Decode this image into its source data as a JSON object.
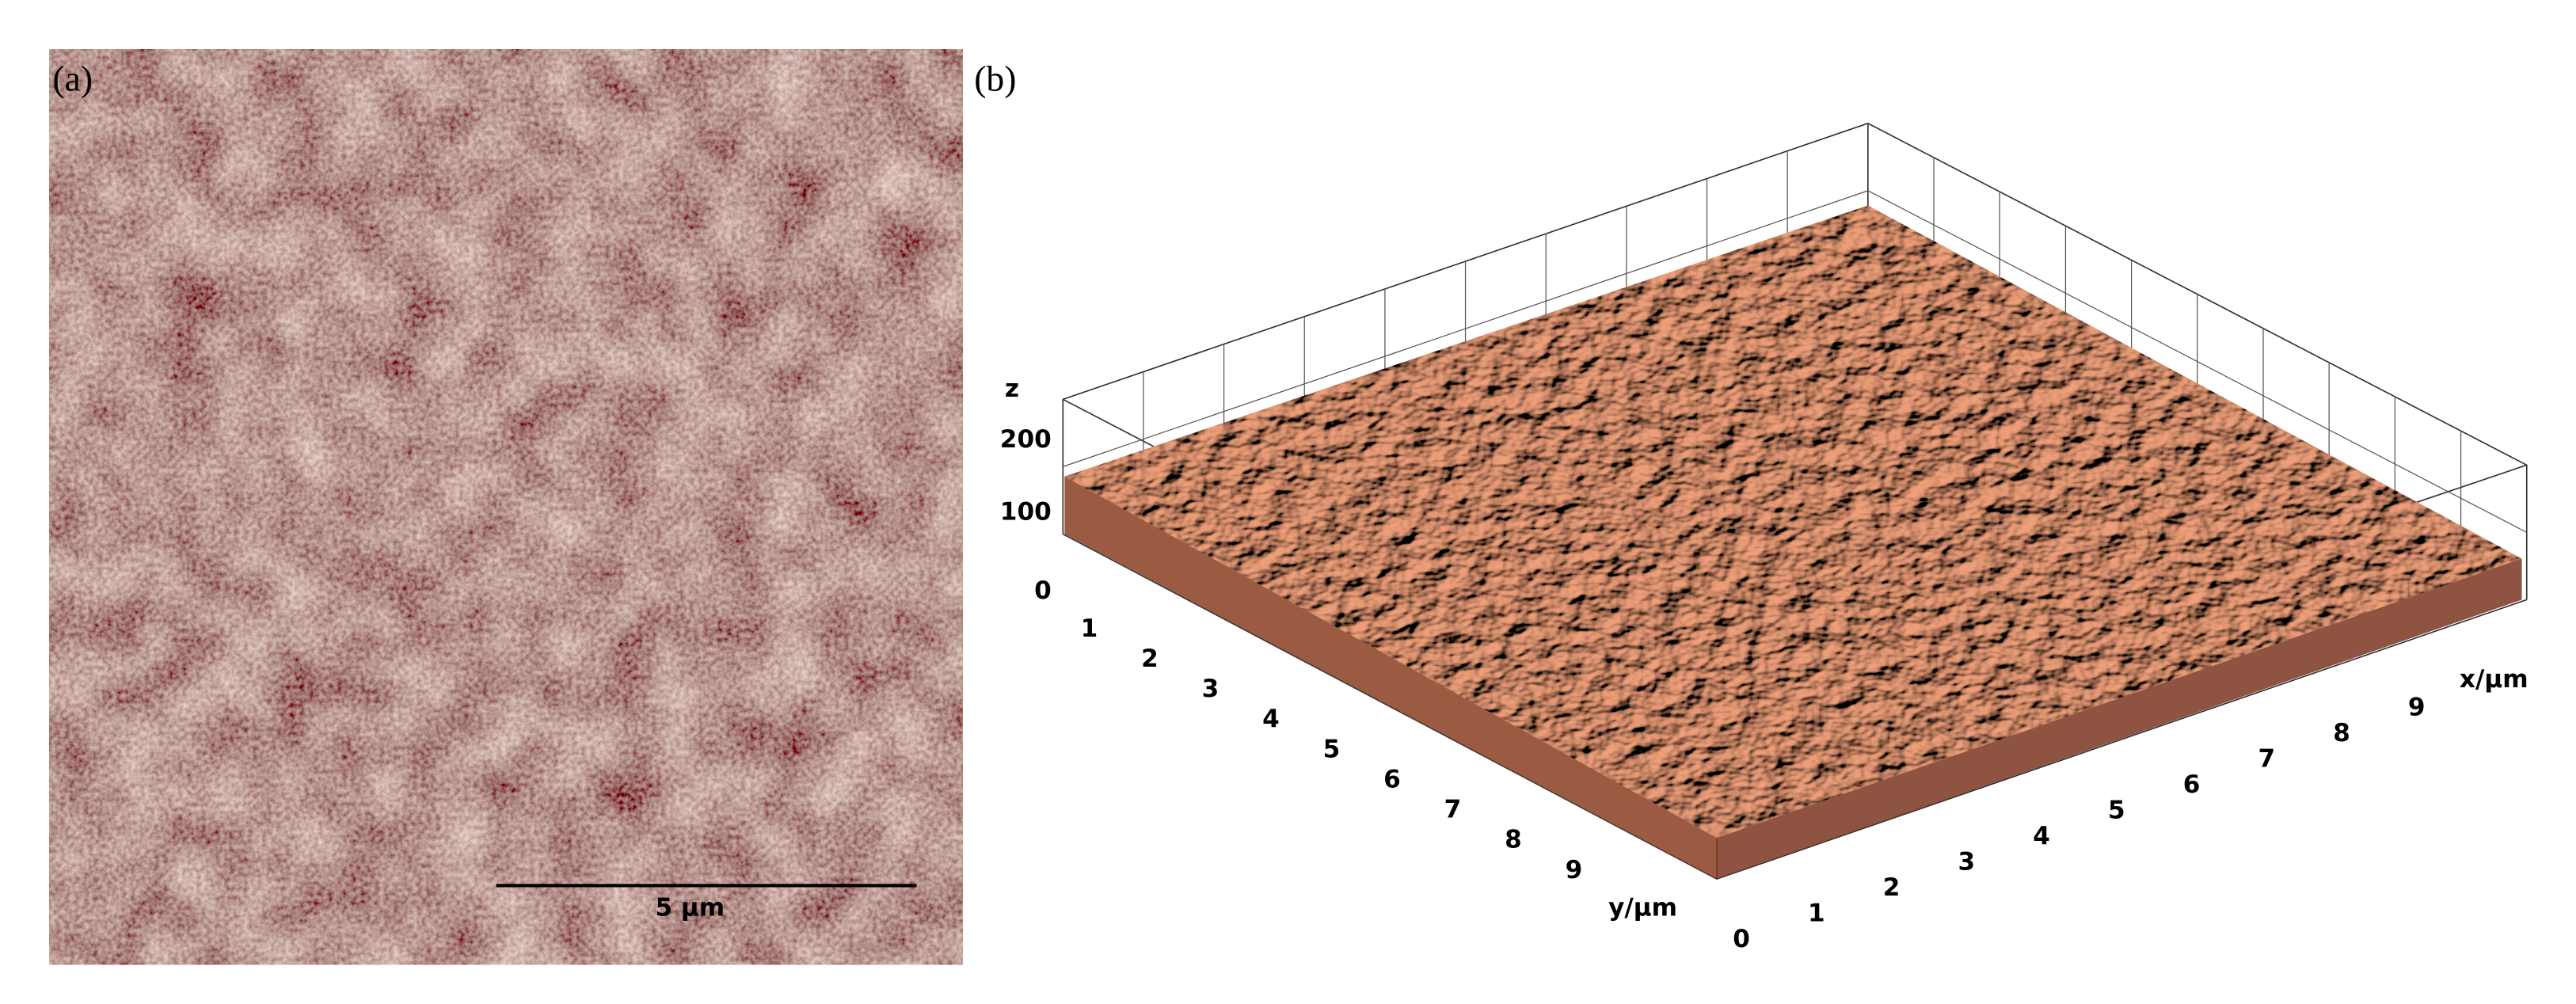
{
  "panel_a": {
    "label": "(a)",
    "scale_bar": "5 μm"
  },
  "panel_b": {
    "label": "(b)",
    "z_label": "z",
    "z_ticks": [
      200,
      100,
      0
    ],
    "y_ticks": [
      1,
      2,
      3,
      4,
      5,
      6,
      7,
      8,
      9
    ],
    "y_label": "y/μm",
    "x_ticks": [
      0,
      1,
      2,
      3,
      4,
      5,
      6,
      7,
      8,
      9
    ],
    "x_label": "x/μm"
  }
}
